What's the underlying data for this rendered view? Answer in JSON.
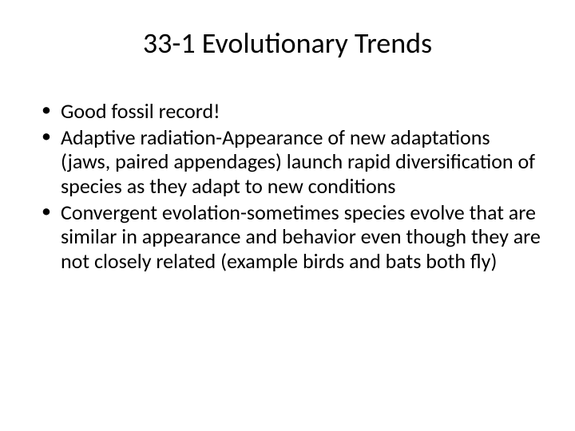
{
  "slide": {
    "title": "33-1 Evolutionary Trends",
    "bullets": [
      "Good fossil record!",
      "Adaptive radiation-Appearance of new adaptations (jaws, paired appendages) launch rapid diversification of species as they adapt to new conditions",
      "Convergent evolation-sometimes species evolve that are similar in appearance and behavior even though they are not closely related (example birds and bats both fly)"
    ]
  },
  "style": {
    "background_color": "#ffffff",
    "text_color": "#000000",
    "title_fontsize": 36,
    "body_fontsize": 26,
    "font_family": "Calibri"
  }
}
